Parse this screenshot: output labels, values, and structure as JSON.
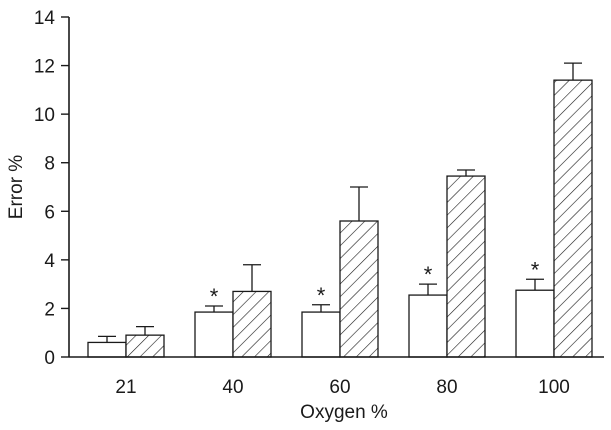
{
  "chart_data": {
    "type": "bar",
    "title": "",
    "xlabel": "Oxygen  %",
    "ylabel": "Error  %",
    "ylim": [
      0,
      14
    ],
    "yticks": [
      0,
      2,
      4,
      6,
      8,
      10,
      12,
      14
    ],
    "categories": [
      "21",
      "40",
      "60",
      "80",
      "100"
    ],
    "grid": false,
    "legend": "none",
    "series": [
      {
        "fill": "open",
        "values": [
          0.6,
          1.85,
          1.85,
          2.55,
          2.75
        ],
        "errors": [
          0.25,
          0.25,
          0.3,
          0.45,
          0.45
        ],
        "significance": [
          "",
          "*",
          "*",
          "*",
          "*"
        ]
      },
      {
        "fill": "hatched",
        "values": [
          0.9,
          2.7,
          5.6,
          7.45,
          11.4
        ],
        "errors": [
          0.35,
          1.1,
          1.4,
          0.25,
          0.7
        ],
        "significance": [
          "",
          "",
          "",
          "",
          ""
        ]
      }
    ]
  },
  "colors": {
    "ink": "#1a1a1a",
    "background": "#ffffff"
  }
}
